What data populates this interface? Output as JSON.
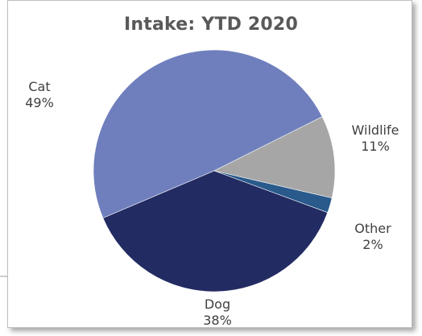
{
  "chart_data": {
    "type": "pie",
    "title": "Intake: YTD 2020",
    "slices": [
      {
        "label": "Cat",
        "percent_label": "49%",
        "value": 49,
        "color": "#6f7fbd"
      },
      {
        "label": "Wildlife",
        "percent_label": "11%",
        "value": 11,
        "color": "#a6a6a6"
      },
      {
        "label": "Other",
        "percent_label": "2%",
        "value": 2,
        "color": "#2a5a8c"
      },
      {
        "label": "Dog",
        "percent_label": "38%",
        "value": 38,
        "color": "#222b62"
      }
    ],
    "legend": "none"
  }
}
